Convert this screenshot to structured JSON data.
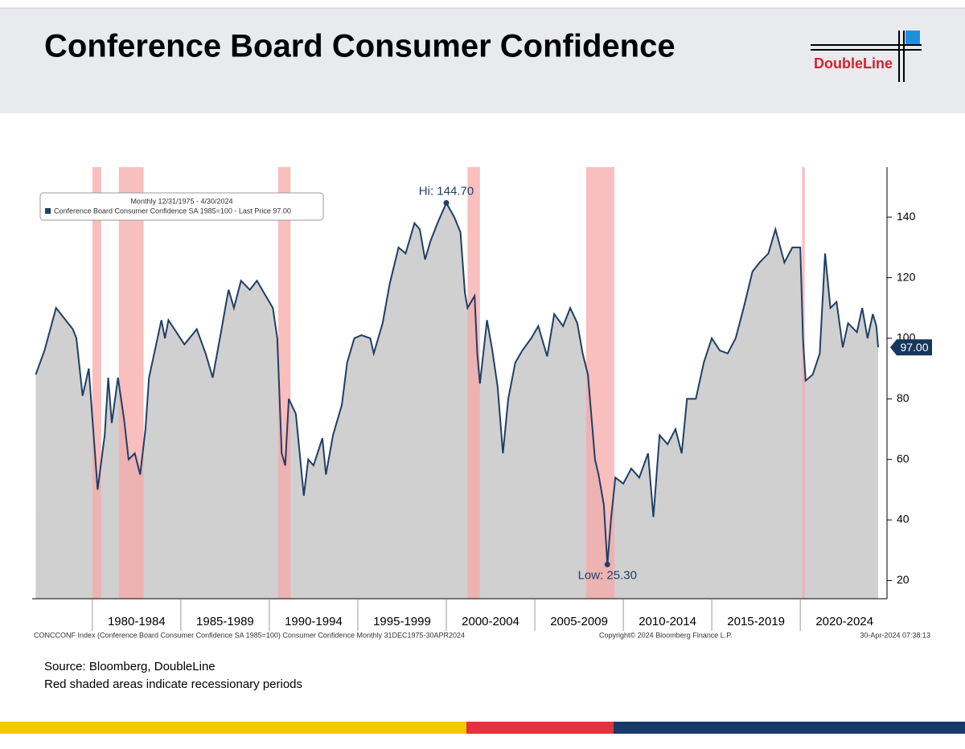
{
  "header": {
    "title": "Conference Board Consumer Confidence",
    "logo": "DoubleLine"
  },
  "chart_data": {
    "type": "area",
    "legend": {
      "line1": "Monthly 12/31/1975 - 4/30/2024",
      "line2": "Conference Board Consumer Confidence SA 1985=100 - Last Price 97.00",
      "position": "upper left"
    },
    "x": [
      1976.8,
      1977.3,
      1977.95,
      1978.9,
      1979.1,
      1979.45,
      1979.8,
      1980.3,
      1980.7,
      1980.9,
      1981.1,
      1981.45,
      1981.8,
      1982.05,
      1982.4,
      1982.7,
      1983.0,
      1983.2,
      1983.9,
      1984.1,
      1984.3,
      1985.2,
      1985.9,
      1986.4,
      1986.8,
      1987.3,
      1987.6,
      1987.7,
      1988.0,
      1988.4,
      1988.9,
      1989.3,
      1989.8,
      1990.2,
      1990.45,
      1990.7,
      1990.9,
      1991.1,
      1991.5,
      1991.95,
      1992.2,
      1992.5,
      1993.0,
      1993.2,
      1993.6,
      1994.1,
      1994.4,
      1994.8,
      1995.2,
      1995.7,
      1995.9,
      1996.4,
      1996.8,
      1997.3,
      1997.7,
      1998.2,
      1998.5,
      1998.8,
      1999.1,
      1999.5,
      2000.0,
      2000.45,
      2000.8,
      2001.05,
      2001.2,
      2001.6,
      2001.75,
      2001.9,
      2002.3,
      2002.6,
      2002.9,
      2003.2,
      2003.5,
      2003.9,
      2004.3,
      2004.8,
      2005.2,
      2005.7,
      2006.1,
      2006.6,
      2007.0,
      2007.4,
      2007.7,
      2008.0,
      2008.4,
      2008.6,
      2008.9,
      2009.1,
      2009.3,
      2009.55,
      2010.0,
      2010.45,
      2010.9,
      2011.4,
      2011.7,
      2012.05,
      2012.5,
      2012.95,
      2013.3,
      2013.6,
      2014.1,
      2014.55,
      2015.0,
      2015.45,
      2015.9,
      2016.35,
      2016.8,
      2017.3,
      2017.7,
      2018.2,
      2018.6,
      2019.1,
      2019.55,
      2020.0,
      2020.15,
      2020.3,
      2020.7,
      2021.1,
      2021.4,
      2021.7,
      2022.05,
      2022.4,
      2022.7,
      2023.2,
      2023.5,
      2023.8,
      2024.1,
      2024.3,
      2024.4
    ],
    "series": [
      {
        "name": "Conference Board Consumer Confidence SA 1985=100",
        "color": "#1f3f66",
        "values": [
          88,
          96,
          110,
          103,
          100,
          81,
          90,
          50,
          68,
          87,
          72,
          87,
          73,
          60,
          62,
          55,
          70,
          87,
          106,
          100,
          106,
          98,
          103,
          95,
          87,
          103,
          113,
          116,
          110,
          119,
          116,
          119,
          114,
          110,
          100,
          62,
          58,
          80,
          75,
          48,
          60,
          58,
          67,
          55,
          68,
          78,
          92,
          100,
          101,
          100,
          95,
          105,
          118,
          130,
          128,
          138,
          136,
          126,
          132,
          138,
          144.7,
          140,
          135,
          115,
          110,
          114,
          95,
          85,
          106,
          96,
          84,
          62,
          80,
          92,
          96,
          100,
          104,
          94,
          108,
          104,
          110,
          105,
          95,
          88,
          60,
          55,
          45,
          25.3,
          40,
          54,
          52,
          57,
          54,
          62,
          41,
          68,
          65,
          70,
          62,
          80,
          80,
          92,
          100,
          96,
          95,
          100,
          110,
          122,
          125,
          128,
          136,
          125,
          130,
          130,
          100,
          86,
          88,
          95,
          128,
          110,
          112,
          97,
          105,
          102,
          110,
          100,
          108,
          104,
          97
        ]
      }
    ],
    "area_color": "#c8c8c8",
    "recessions": [
      [
        1980.0,
        1980.5
      ],
      [
        1981.5,
        1982.9
      ],
      [
        1990.5,
        1991.2
      ],
      [
        2001.2,
        2001.9
      ],
      [
        2007.9,
        2009.5
      ],
      [
        2020.1,
        2020.25
      ]
    ],
    "recession_color": "#f7a8a8",
    "xlim": [
      1976.6,
      2024.9
    ],
    "xticks": [
      {
        "value": 1982.5,
        "label": "1980-1984"
      },
      {
        "value": 1987.5,
        "label": "1985-1989"
      },
      {
        "value": 1992.5,
        "label": "1990-1994"
      },
      {
        "value": 1997.5,
        "label": "1995-1999"
      },
      {
        "value": 2002.5,
        "label": "2000-2004"
      },
      {
        "value": 2007.5,
        "label": "2005-2009"
      },
      {
        "value": 2012.5,
        "label": "2010-2014"
      },
      {
        "value": 2017.5,
        "label": "2015-2019"
      },
      {
        "value": 2022.5,
        "label": "2020-2024"
      }
    ],
    "ylim": [
      14,
      156.5
    ],
    "yticks": [
      20,
      40,
      60,
      80,
      100,
      120,
      140
    ],
    "annotations": [
      {
        "text": "Hi: 144.70",
        "x": 2000.0,
        "y": 144.7
      },
      {
        "text": "Low: 25.30",
        "x": 2009.1,
        "y": 25.3
      }
    ],
    "last_price": {
      "value": 97,
      "label": "97.00"
    },
    "footer": {
      "left": "CONCCONF Index (Conference Board Consumer Confidence SA 1985=100) Consumer Confidence  Monthly 31DEC1975-30APR2024",
      "center": "Copyright© 2024 Bloomberg Finance L.P.",
      "right": "30-Apr-2024 07:38:13"
    }
  },
  "notes": {
    "source": "Source: Bloomberg, DoubleLine",
    "recession_note": "Red shaded areas indicate recessionary periods"
  }
}
